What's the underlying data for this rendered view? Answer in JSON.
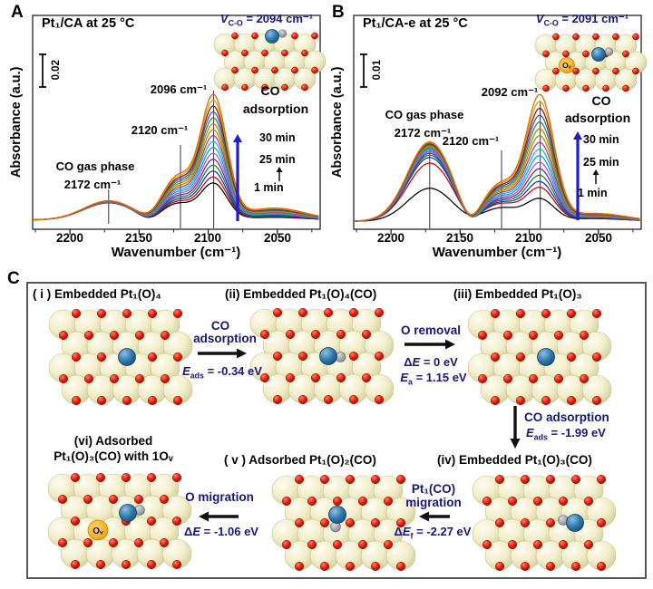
{
  "figure_caption": "CO adsorption DRIFTS spectra and DFT CO-induced Pt1 migration pathway",
  "colors": {
    "navy_text": "#16167e",
    "arrow_blue": "#1d1dcf",
    "arrow_black": "#111111",
    "sphere_cream": "#f0ecc8",
    "oxygen_red": "#e01808",
    "pt_blue": "#2470a8",
    "carbon_grey": "#9aa0a6",
    "vacancy_gold": "#f2b01e"
  },
  "panelA": {
    "label": "A",
    "title": "Pt₁/CA at 25 °C",
    "scale_bar": "0.02",
    "vco": {
      "v": "V",
      "sub": "C-O",
      "rest": " = 2094 cm⁻¹"
    },
    "ann_main_peak": "2096 cm⁻¹",
    "ann_shoulder": "2120 cm⁻¹",
    "ann_gas_line1": "CO gas phase",
    "ann_gas_line2": "2172 cm⁻¹",
    "co_line1": "CO",
    "co_line2": "adsorption",
    "time_top": "30 min",
    "time_mid": "25 min",
    "time_bottom": "1 min"
  },
  "panelB": {
    "label": "B",
    "title": "Pt₁/CA-e at 25 °C",
    "scale_bar": "0.01",
    "vco": {
      "v": "V",
      "sub": "C-O",
      "rest": " = 2091 cm⁻¹"
    },
    "ann_main_peak": "2092 cm⁻¹",
    "ann_shoulder": "2120 cm⁻¹",
    "ann_gas_line1": "CO gas phase",
    "ann_gas_line2": "2172 cm⁻¹",
    "co_line1": "CO",
    "co_line2": "adsorption",
    "time_top": "30 min",
    "time_mid": "25 min",
    "time_bottom": "1 min"
  },
  "panelC": {
    "label": "C",
    "ov_label": "Oᵥ",
    "steps": {
      "i": {
        "title": "( i ) Embedded Pt₁(O)₄",
        "model": {
          "pt": true,
          "co": false,
          "ov": false
        }
      },
      "ii": {
        "title": "(ii) Embedded Pt₁(O)₄(CO)",
        "model": {
          "pt": true,
          "co": true,
          "ov": false
        }
      },
      "iii": {
        "title": "(iii) Embedded Pt₁(O)₃",
        "model": {
          "pt": true,
          "co": false,
          "ov": false
        }
      },
      "iv": {
        "title": "(iv) Embedded Pt₁(O)₃(CO)",
        "model": {
          "pt": true,
          "co": true,
          "ov": false
        }
      },
      "v": {
        "title": "( v ) Adsorbed Pt₁(O)₂(CO)",
        "model": {
          "pt": true,
          "co": true,
          "ov": false
        }
      },
      "vi": {
        "title_line1": "(vi) Adsorbed",
        "title_line2": "Pt₁(O)₃(CO) with 1Oᵥ",
        "model": {
          "pt": true,
          "co": true,
          "ov": true
        }
      }
    },
    "arrows": {
      "a1": {
        "label_line1": "CO",
        "label_line2": "adsorption",
        "energy": {
          "pre": "",
          "main": "E",
          "sub": "ads",
          "rest": " = -0.34 eV"
        }
      },
      "a2": {
        "label": "O removal",
        "energy1": {
          "pre": "Δ",
          "main": "E",
          "sub": "",
          "rest": " = 0 eV"
        },
        "energy2": {
          "pre": "",
          "main": "E",
          "sub": "a",
          "rest": " = 1.15 eV"
        }
      },
      "a3": {
        "label": "CO adsorption",
        "energy": {
          "pre": "",
          "main": "E",
          "sub": "ads",
          "rest": " = -1.99 eV"
        }
      },
      "a4": {
        "label_line1": "Pt₁(CO)",
        "label_line2": "migration",
        "energy": {
          "pre": "Δ",
          "main": "E",
          "sub": "f",
          "rest": " = -2.27 eV"
        }
      },
      "a5": {
        "label": "O migration",
        "energy": {
          "pre": "Δ",
          "main": "E",
          "sub": "",
          "rest": " = -1.06 eV"
        }
      }
    }
  },
  "chart_data": [
    {
      "panel": "A",
      "type": "line",
      "title": "Pt₁/CA at 25 °C",
      "xlabel": "Wavenumber (cm⁻¹)",
      "ylabel": "Absorbance (a.u.)",
      "x_ticks": [
        "2200",
        "2150",
        "2100",
        "2050"
      ],
      "x_tick_values": [
        2200,
        2150,
        2100,
        2050
      ],
      "x_minor_tick_values": [
        2225,
        2175,
        2125,
        2075,
        2025
      ],
      "x_range": [
        2227,
        2019
      ],
      "x_axis_reversed": true,
      "grid": false,
      "scale_bar_absorbance": 0.02,
      "n_curves": 16,
      "time_series_min": {
        "first": 1,
        "labeled": [
          1,
          25,
          30
        ]
      },
      "main_peak_wavenumber": 2096,
      "gas_phase_peak_wavenumber": 2172,
      "shoulder_wavenumber": 2120,
      "baseline": 0.07,
      "peaks": [
        {
          "name": "co_gas_phase",
          "center": 2172,
          "sigma": 18,
          "amp_first": 0.13,
          "amp_last": 0.145,
          "pow": 1
        },
        {
          "name": "shoulder_2120",
          "center": 2122,
          "sigma": 11,
          "amp_first": 0.12,
          "amp_last": 0.32,
          "pow": 1
        },
        {
          "name": "pt1_co_main",
          "center": 2096,
          "sigma": 9.5,
          "amp_first": 0.27,
          "amp_last": 0.92,
          "pow": 1
        },
        {
          "name": "low_wavenumber_tail",
          "center": 2052,
          "sigma": 22,
          "amp_first": 0.02,
          "amp_last": 0.09,
          "pow": 1
        },
        {
          "name": "dip_2143",
          "center": 2143,
          "sigma": 7,
          "amp_first": -0.035,
          "amp_last": -0.03,
          "pow": 1
        }
      ],
      "curve_colors": [
        "#000000",
        "#cf0000",
        "#1232c8",
        "#0b8a12",
        "#6a1fae",
        "#a855d6",
        "#2090e8",
        "#00bcd0",
        "#cb2a8e",
        "#8a9a00",
        "#d07800",
        "#2e8b57",
        "#3f51b5",
        "#8b1010",
        "#caa410",
        "#e06400"
      ]
    },
    {
      "panel": "B",
      "type": "line",
      "title": "Pt₁/CA-e at 25 °C",
      "xlabel": "Wavenumber (cm⁻¹)",
      "ylabel": "Absorbance (a.u.)",
      "x_ticks": [
        "2200",
        "2150",
        "2100",
        "2050"
      ],
      "x_tick_values": [
        2200,
        2150,
        2100,
        2050
      ],
      "x_minor_tick_values": [
        2225,
        2175,
        2125,
        2075,
        2025
      ],
      "x_range": [
        2227,
        2019
      ],
      "x_axis_reversed": true,
      "grid": false,
      "scale_bar_absorbance": 0.01,
      "n_curves": 16,
      "time_series_min": {
        "first": 1,
        "labeled": [
          1,
          25,
          30
        ]
      },
      "main_peak_wavenumber": 2092,
      "gas_phase_peak_wavenumber": 2172,
      "shoulder_wavenumber": 2120,
      "baseline": 0.06,
      "peaks": [
        {
          "name": "co_gas_phase",
          "center": 2172,
          "sigma": 16,
          "amp_first": 0.44,
          "amp_last": 0.6,
          "pow": 0.5,
          "first_curve_amp": 0.25
        },
        {
          "name": "shoulder_2120",
          "center": 2120,
          "sigma": 13,
          "amp_first": 0.13,
          "amp_last": 0.28,
          "pow": 1,
          "first_curve_amp": 0.1
        },
        {
          "name": "pt1_co_main",
          "center": 2092,
          "sigma": 10,
          "amp_first": 0.24,
          "amp_last": 0.92,
          "pow": 1.05,
          "first_curve_amp": 0.16
        },
        {
          "name": "low_wavenumber_tail",
          "center": 2052,
          "sigma": 22,
          "amp_first": 0.02,
          "amp_last": 0.06,
          "pow": 1
        },
        {
          "name": "dip_2143",
          "center": 2143,
          "sigma": 7,
          "amp_first": -0.06,
          "amp_last": -0.12,
          "pow": 0.4,
          "first_curve_amp": -0.02
        }
      ],
      "curve_colors": [
        "#000000",
        "#cf0000",
        "#1232c8",
        "#0b8a12",
        "#6a1fae",
        "#a855d6",
        "#2090e8",
        "#00bcd0",
        "#cb2a8e",
        "#8a9a00",
        "#d07800",
        "#2e8b57",
        "#3f51b5",
        "#8b1010",
        "#caa410",
        "#e06400"
      ]
    }
  ]
}
